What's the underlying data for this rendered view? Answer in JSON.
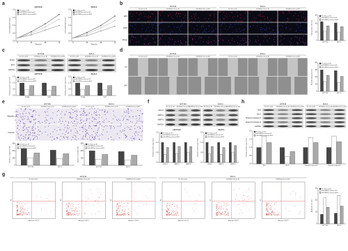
{
  "panel_labels": [
    "a",
    "b",
    "c",
    "d",
    "e",
    "f",
    "g",
    "h"
  ],
  "cell_lines": [
    "HCT116",
    "DLD-1"
  ],
  "conditions": [
    "NC mimic+pc-NC",
    "miR-6838-5p mimic+pc-NC",
    "miR-6838-5p mimic+pc-BLM"
  ],
  "image_rows": {
    "b": [
      "EdU",
      "DAPI",
      "Merge"
    ],
    "d": [
      "0 h",
      "24 h"
    ],
    "e": [
      "Migration",
      "Invasion"
    ]
  },
  "blot_rows": {
    "c": [
      "PCNA",
      "Ki67",
      "GAPDH"
    ],
    "f": [
      "CDH-2",
      "MMP-2",
      "MMP-9",
      "GAPDH"
    ],
    "h": [
      "Bax",
      "Bcl-2",
      "Cleaved caspase-3",
      "Cleaved caspase-9",
      "GAPDH"
    ]
  },
  "flow_axes": {
    "x": "Annexin V-FITC",
    "y": "PI"
  },
  "charts": [
    {
      "type": "line",
      "title": "HCT116",
      "x": [
        0,
        24,
        48,
        72
      ],
      "xlim": [
        0,
        72
      ],
      "xticks": [
        0,
        24,
        48,
        72
      ],
      "xlabel": "Time (h)",
      "ylabel": "Cell viability (OD value)",
      "ylim": [
        0,
        2
      ],
      "yticks": [
        {
          "value": 0,
          "label": "0.0"
        },
        {
          "value": 0.5,
          "label": "0.5"
        },
        {
          "value": 1,
          "label": "1.0"
        },
        {
          "value": 1.5,
          "label": "1.5"
        },
        {
          "value": 2,
          "label": "2.0"
        }
      ],
      "series": [
        {
          "name": "NC mimic+pc-NC",
          "color": "#222222",
          "values": [
            0.2,
            0.6,
            1.1,
            1.7
          ]
        },
        {
          "name": "miR-6838-5p mimic+pc-NC",
          "color": "#777777",
          "values": [
            0.2,
            0.4,
            0.7,
            1.0
          ]
        },
        {
          "name": "miR-6838-5p mimic+pc-BLM",
          "color": "#aaaaaa",
          "values": [
            0.2,
            0.5,
            0.9,
            1.4
          ]
        }
      ]
    },
    {
      "type": "line",
      "title": "DLD-1",
      "x": [
        0,
        24,
        48,
        72
      ],
      "xlim": [
        0,
        72
      ],
      "xticks": [
        0,
        24,
        48,
        72
      ],
      "xlabel": "Time (h)",
      "ylabel": "Cell viability (OD value)",
      "ylim": [
        0,
        2
      ],
      "yticks": [
        {
          "value": 0,
          "label": "0.0"
        },
        {
          "value": 0.5,
          "label": "0.5"
        },
        {
          "value": 1,
          "label": "1.0"
        },
        {
          "value": 1.5,
          "label": "1.5"
        },
        {
          "value": 2,
          "label": "2.0"
        }
      ],
      "series": [
        {
          "name": "NC mimic+pc-NC",
          "color": "#222222",
          "values": [
            0.2,
            0.55,
            1.0,
            1.6
          ]
        },
        {
          "name": "miR-6838-5p mimic+pc-NC",
          "color": "#777777",
          "values": [
            0.2,
            0.35,
            0.65,
            0.95
          ]
        },
        {
          "name": "miR-6838-5p mimic+pc-BLM",
          "color": "#aaaaaa",
          "values": [
            0.2,
            0.45,
            0.85,
            1.3
          ]
        }
      ]
    },
    {
      "type": "bar",
      "categories": [
        "HCT116",
        "DLD-1"
      ],
      "ylabel": "EdU positive cells (%)",
      "ylim": [
        0,
        60
      ],
      "yticks": [
        0,
        20,
        40,
        60
      ],
      "series": [
        {
          "name": "NC mimic+pc-NC",
          "color": "#444444",
          "values": [
            45,
            42
          ]
        },
        {
          "name": "miR-6838-5p mimic+pc-NC",
          "color": "#ffffff",
          "values": [
            22,
            20
          ]
        },
        {
          "name": "miR-6838-5p mimic+pc-BLM",
          "color": "#aaaaaa",
          "values": [
            35,
            33
          ]
        }
      ]
    },
    {
      "type": "bar",
      "title": "HCT116",
      "categories": [
        "PCNA",
        "Ki67"
      ],
      "ylabel": "Relative protein expression",
      "ylim": [
        0,
        1.5
      ],
      "yticks": [
        {
          "value": 0,
          "label": "0.0"
        },
        {
          "value": 0.5,
          "label": "0.5"
        },
        {
          "value": 1,
          "label": "1.0"
        },
        {
          "value": 1.5,
          "label": "1.5"
        }
      ],
      "series": [
        {
          "name": "NC mimic+pc-NC",
          "color": "#444444",
          "values": [
            1.0,
            1.0
          ]
        },
        {
          "name": "miR-6838-5p mimic+pc-NC",
          "color": "#ffffff",
          "values": [
            0.45,
            0.4
          ]
        },
        {
          "name": "miR-6838-5p mimic+pc-BLM",
          "color": "#aaaaaa",
          "values": [
            0.8,
            0.75
          ]
        }
      ]
    },
    {
      "type": "bar",
      "title": "DLD-1",
      "categories": [
        "PCNA",
        "Ki67"
      ],
      "ylabel": "Relative protein expression",
      "ylim": [
        0,
        1.5
      ],
      "yticks": [
        {
          "value": 0,
          "label": "0.0"
        },
        {
          "value": 0.5,
          "label": "0.5"
        },
        {
          "value": 1,
          "label": "1.0"
        },
        {
          "value": 1.5,
          "label": "1.5"
        }
      ],
      "series": [
        {
          "name": "NC mimic+pc-NC",
          "color": "#444444",
          "values": [
            1.0,
            1.0
          ]
        },
        {
          "name": "miR-6838-5p mimic+pc-NC",
          "color": "#ffffff",
          "values": [
            0.5,
            0.45
          ]
        },
        {
          "name": "miR-6838-5p mimic+pc-BLM",
          "color": "#aaaaaa",
          "values": [
            0.8,
            0.8
          ]
        }
      ]
    },
    {
      "type": "bar",
      "categories": [
        "HCT116",
        "DLD-1"
      ],
      "ylabel": "Wound healing rate (%)",
      "ylim": [
        0,
        80
      ],
      "yticks": [
        0,
        20,
        40,
        60,
        80
      ],
      "series": [
        {
          "name": "NC mimic+pc-NC",
          "color": "#444444",
          "values": [
            60,
            58
          ]
        },
        {
          "name": "miR-6838-5p mimic+pc-NC",
          "color": "#ffffff",
          "values": [
            28,
            25
          ]
        },
        {
          "name": "miR-6838-5p mimic+pc-BLM",
          "color": "#aaaaaa",
          "values": [
            45,
            42
          ]
        }
      ]
    },
    {
      "type": "bar",
      "categories": [
        "HCT116",
        "DLD-1"
      ],
      "ylabel": "Number of migrated cells",
      "ylim": [
        0,
        300
      ],
      "yticks": [
        0,
        100,
        200,
        300
      ],
      "series": [
        {
          "name": "NC mimic+pc-NC",
          "color": "#444444",
          "values": [
            230,
            210
          ]
        },
        {
          "name": "miR-6838-5p mimic+pc-NC",
          "color": "#ffffff",
          "values": [
            100,
            95
          ]
        },
        {
          "name": "miR-6838-5p mimic+pc-BLM",
          "color": "#aaaaaa",
          "values": [
            170,
            160
          ]
        }
      ]
    },
    {
      "type": "bar",
      "categories": [
        "HCT116",
        "DLD-1"
      ],
      "ylabel": "Number of invaded cells",
      "ylim": [
        0,
        300
      ],
      "yticks": [
        0,
        100,
        200,
        300
      ],
      "series": [
        {
          "name": "NC mimic+pc-NC",
          "color": "#444444",
          "values": [
            200,
            190
          ]
        },
        {
          "name": "miR-6838-5p mimic+pc-NC",
          "color": "#ffffff",
          "values": [
            80,
            75
          ]
        },
        {
          "name": "miR-6838-5p mimic+pc-BLM",
          "color": "#aaaaaa",
          "values": [
            150,
            140
          ]
        }
      ]
    },
    {
      "type": "bar",
      "title": "HCT116",
      "categories": [
        "CDH-2",
        "MMP-2",
        "MMP-9"
      ],
      "ylabel": "Relative protein expression",
      "ylim": [
        0,
        1.5
      ],
      "yticks": [
        {
          "value": 0,
          "label": "0.0"
        },
        {
          "value": 0.5,
          "label": "0.5"
        },
        {
          "value": 1,
          "label": "1.0"
        },
        {
          "value": 1.5,
          "label": "1.5"
        }
      ],
      "series": [
        {
          "name": "NC mimic+pc-NC",
          "color": "#444444",
          "values": [
            1.0,
            1.0,
            1.0
          ]
        },
        {
          "name": "miR-6838-5p mimic+pc-NC",
          "color": "#ffffff",
          "values": [
            0.4,
            0.45,
            0.5
          ]
        },
        {
          "name": "miR-6838-5p mimic+pc-BLM",
          "color": "#aaaaaa",
          "values": [
            0.75,
            0.8,
            0.8
          ]
        }
      ]
    },
    {
      "type": "bar",
      "title": "DLD-1",
      "categories": [
        "CDH-2",
        "MMP-2",
        "MMP-9"
      ],
      "ylabel": "Relative protein expression",
      "ylim": [
        0,
        1.5
      ],
      "yticks": [
        {
          "value": 0,
          "label": "0.0"
        },
        {
          "value": 0.5,
          "label": "0.5"
        },
        {
          "value": 1,
          "label": "1.0"
        },
        {
          "value": 1.5,
          "label": "1.5"
        }
      ],
      "series": [
        {
          "name": "NC mimic+pc-NC",
          "color": "#444444",
          "values": [
            1.0,
            1.0,
            1.0
          ]
        },
        {
          "name": "miR-6838-5p mimic+pc-NC",
          "color": "#ffffff",
          "values": [
            0.45,
            0.4,
            0.5
          ]
        },
        {
          "name": "miR-6838-5p mimic+pc-BLM",
          "color": "#aaaaaa",
          "values": [
            0.8,
            0.75,
            0.85
          ]
        }
      ]
    },
    {
      "type": "bar",
      "categories": [
        "Bax",
        "Bcl-2",
        "Cleaved caspase-3",
        "Cleaved caspase-9"
      ],
      "ylabel": "Relative protein expression",
      "ylim": [
        0,
        2
      ],
      "yticks": [
        {
          "value": 0,
          "label": "0.0"
        },
        {
          "value": 0.5,
          "label": "0.5"
        },
        {
          "value": 1,
          "label": "1.0"
        },
        {
          "value": 1.5,
          "label": "1.5"
        },
        {
          "value": 2,
          "label": "2.0"
        }
      ],
      "series": [
        {
          "name": "NC mimic+pc-NC",
          "color": "#444444",
          "values": [
            1.0,
            1.0,
            1.0,
            1.0
          ]
        },
        {
          "name": "miR-6838-5p mimic+pc-NC",
          "color": "#ffffff",
          "values": [
            1.7,
            0.45,
            1.6,
            1.7
          ]
        },
        {
          "name": "miR-6838-5p mimic+pc-BLM",
          "color": "#aaaaaa",
          "values": [
            1.3,
            0.75,
            1.3,
            1.35
          ]
        }
      ]
    },
    {
      "type": "bar",
      "categories": [
        "HCT116",
        "DLD-1"
      ],
      "ylabel": "Apoptosis rate (%)",
      "ylim": [
        0,
        30
      ],
      "yticks": [
        0,
        10,
        20,
        30
      ],
      "series": [
        {
          "name": "NC mimic+pc-NC",
          "color": "#444444",
          "values": [
            8,
            9
          ]
        },
        {
          "name": "miR-6838-5p mimic+pc-NC",
          "color": "#ffffff",
          "values": [
            22,
            24
          ]
        },
        {
          "name": "miR-6838-5p mimic+pc-BLM",
          "color": "#aaaaaa",
          "values": [
            14,
            15
          ]
        }
      ]
    }
  ]
}
